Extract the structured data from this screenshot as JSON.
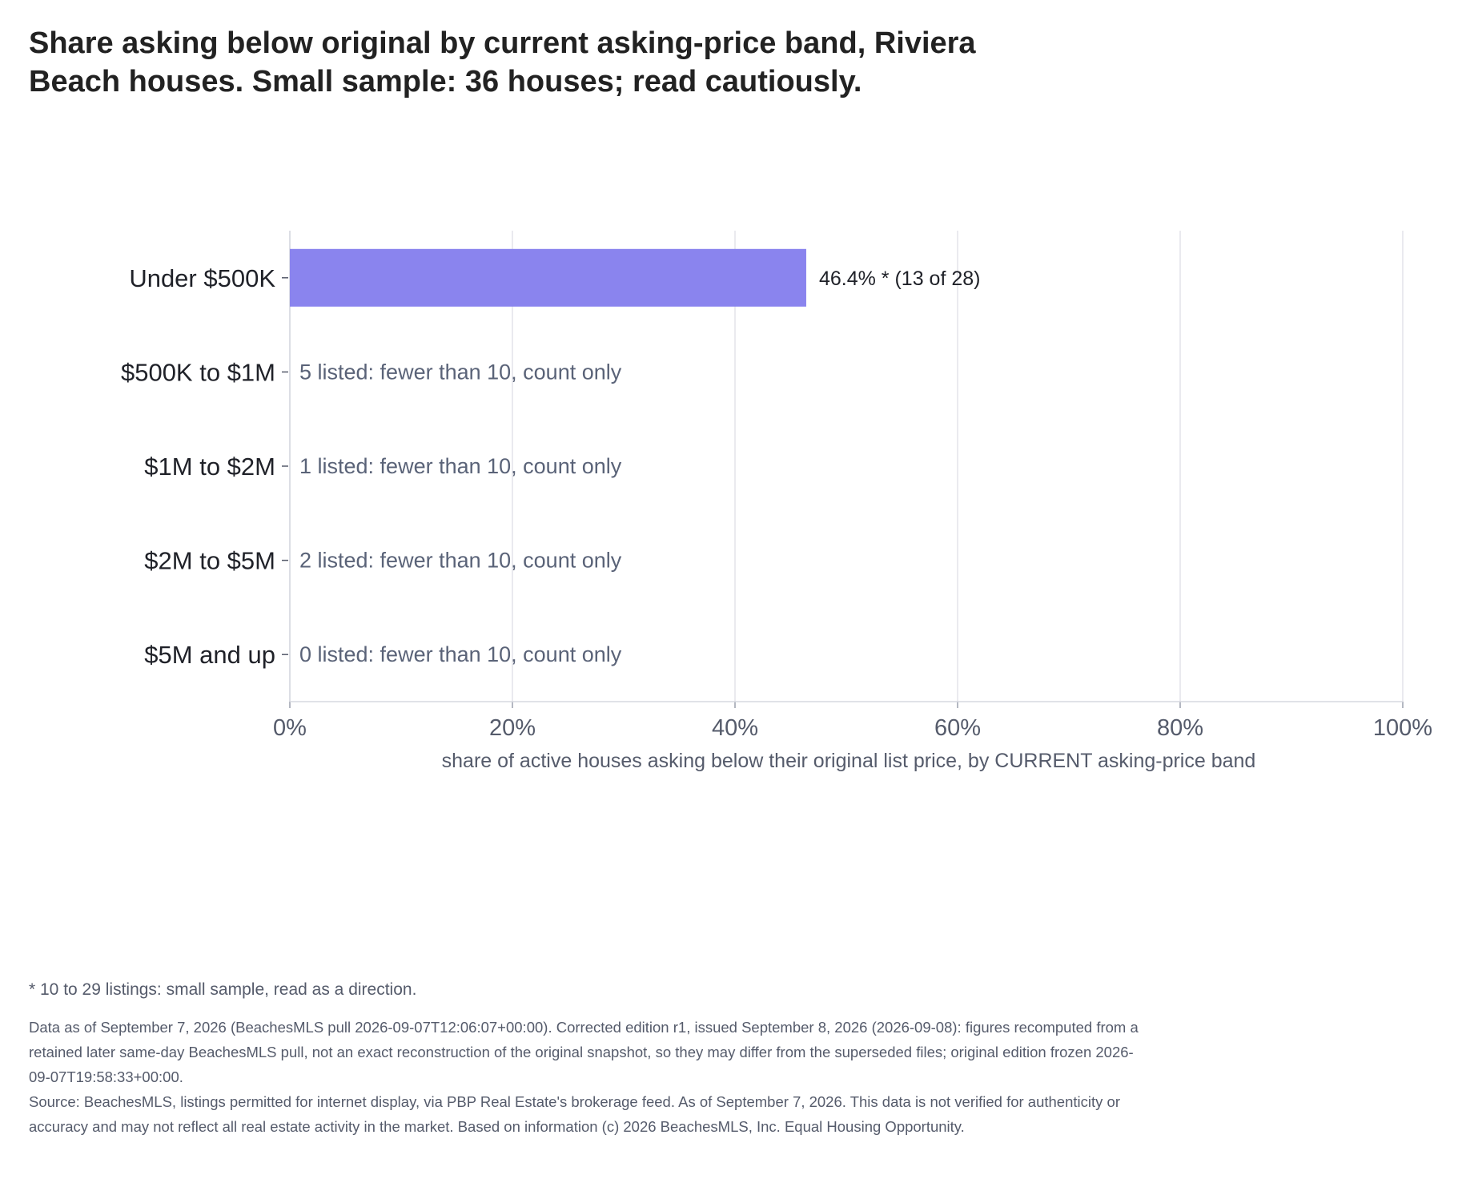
{
  "chart_data": {
    "type": "bar",
    "orientation": "horizontal",
    "title": "Share asking below original by current asking-price band, Riviera Beach houses. Small sample: 36 houses; read cautiously.",
    "xlabel": "share of active houses asking below their original list price, by CURRENT asking-price band",
    "ylabel": "",
    "xlim": [
      0,
      100
    ],
    "x_ticks": [
      "0%",
      "20%",
      "40%",
      "60%",
      "80%",
      "100%"
    ],
    "grid": true,
    "categories": [
      "Under $500K",
      "$500K to $1M",
      "$1M to $2M",
      "$2M to $5M",
      "$5M and up"
    ],
    "values": [
      46.4,
      null,
      null,
      null,
      null
    ],
    "data_labels": [
      "46.4% *  (13 of 28)",
      "5 listed: fewer than 10, count only",
      "1 listed: fewer than 10, count only",
      "2 listed: fewer than 10, count only",
      "0 listed: fewer than 10, count only"
    ],
    "bar_color": "#8a84ee",
    "label_color_bar": "#1f2128",
    "label_color_count": "#5a6378"
  },
  "footnote": "* 10 to 29 listings: small sample, read as a direction.",
  "data_note": "Data as of September 7, 2026 (BeachesMLS pull 2026-09-07T12:06:07+00:00). Corrected edition r1, issued September 8, 2026 (2026-09-08): figures recomputed from a retained later same-day BeachesMLS pull, not an exact reconstruction of the original snapshot, so they may differ from the superseded files; original edition frozen 2026-09-07T19:58:33+00:00.",
  "source_note": "Source: BeachesMLS, listings permitted for internet display, via PBP Real Estate's brokerage feed. As of September 7, 2026. This data is not verified for authenticity or accuracy and may not reflect all real estate activity in the market. Based on information (c) 2026 BeachesMLS, Inc. Equal Housing Opportunity."
}
